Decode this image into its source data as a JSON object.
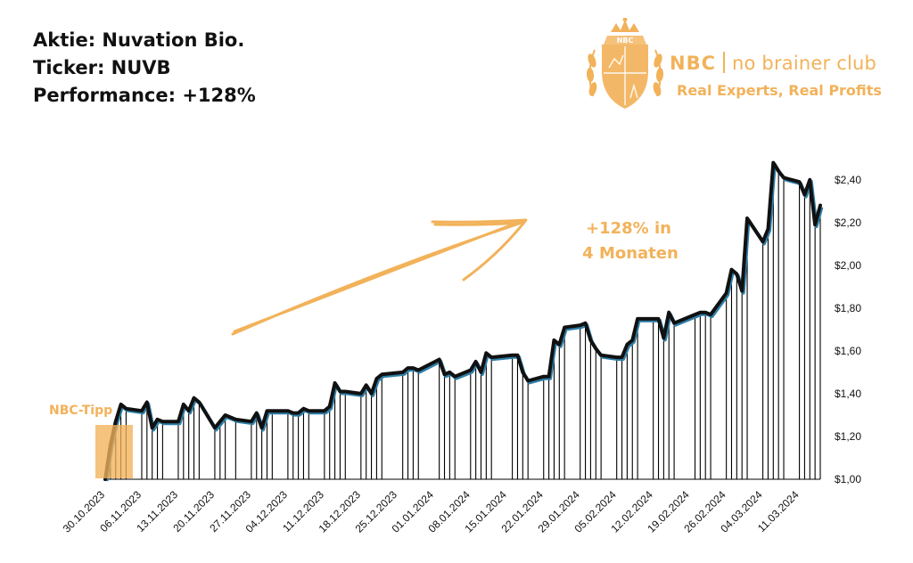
{
  "header": {
    "stock_line": "Aktie: Nuvation Bio.",
    "ticker_line": "Ticker: NUVB",
    "performance_line": "Performance: +128%"
  },
  "brand": {
    "crest_text": "NBC",
    "abbr": "NBC",
    "name": "no brainer club",
    "slogan": "Real Experts, Real Profits",
    "color": "#f2b25a"
  },
  "chart_data": {
    "type": "line",
    "title": "",
    "xlabel": "",
    "ylabel": "",
    "y_axis_position": "right",
    "ylim": [
      1.0,
      2.5
    ],
    "y_ticks": [
      "$1,00",
      "$1,20",
      "$1,40",
      "$1,60",
      "$1,80",
      "$2,00",
      "$2,20",
      "$2,40"
    ],
    "x_ticks": [
      "30.10.2023",
      "06.11.2023",
      "13.11.2023",
      "20.11.2023",
      "27.11.2023",
      "04.12.2023",
      "11.12.2023",
      "18.12.2023",
      "25.12.2023",
      "01.01.2024",
      "08.01.2024",
      "15.01.2024",
      "22.01.2024",
      "29.01.2024",
      "05.02.2024",
      "12.02.2024",
      "19.02.2024",
      "26.02.2024",
      "04.03.2024",
      "11.03.2024"
    ],
    "line_color": "#111111",
    "shadow_color": "#2f7fa8",
    "drop_lines": true,
    "series": [
      {
        "x": [
          "30.10.2023",
          "31.10.2023",
          "01.11.2023",
          "02.11.2023",
          "03.11.2023",
          "06.11.2023",
          "07.11.2023",
          "08.11.2023",
          "09.11.2023",
          "10.11.2023",
          "13.11.2023",
          "14.11.2023",
          "15.11.2023",
          "16.11.2023",
          "17.11.2023",
          "20.11.2023",
          "21.11.2023",
          "22.11.2023",
          "24.11.2023",
          "27.11.2023",
          "28.11.2023",
          "29.11.2023",
          "30.11.2023",
          "01.12.2023",
          "04.12.2023",
          "05.12.2023",
          "06.12.2023",
          "07.12.2023",
          "08.12.2023",
          "11.12.2023",
          "12.12.2023",
          "13.12.2023",
          "14.12.2023",
          "15.12.2023",
          "18.12.2023",
          "19.12.2023",
          "20.12.2023",
          "21.12.2023",
          "22.12.2023",
          "26.12.2023",
          "27.12.2023",
          "28.12.2023",
          "29.12.2023",
          "02.01.2024",
          "03.01.2024",
          "04.01.2024",
          "05.01.2024",
          "08.01.2024",
          "09.01.2024",
          "10.01.2024",
          "11.01.2024",
          "12.01.2024",
          "16.01.2024",
          "17.01.2024",
          "18.01.2024",
          "19.01.2024",
          "22.01.2024",
          "23.01.2024",
          "24.01.2024",
          "25.01.2024",
          "26.01.2024",
          "29.01.2024",
          "30.01.2024",
          "31.01.2024",
          "01.02.2024",
          "02.02.2024",
          "05.02.2024",
          "06.02.2024",
          "07.02.2024",
          "08.02.2024",
          "09.02.2024",
          "12.02.2024",
          "13.02.2024",
          "14.02.2024",
          "15.02.2024",
          "16.02.2024",
          "20.02.2024",
          "21.02.2024",
          "22.02.2024",
          "23.02.2024",
          "26.02.2024",
          "27.02.2024",
          "28.02.2024",
          "29.02.2024",
          "01.03.2024",
          "04.03.2024",
          "05.03.2024",
          "06.03.2024",
          "07.03.2024",
          "08.03.2024",
          "11.03.2024",
          "12.03.2024",
          "13.03.2024",
          "14.03.2024",
          "15.03.2024"
        ],
        "values": [
          1.0,
          1.16,
          1.27,
          1.35,
          1.33,
          1.32,
          1.36,
          1.24,
          1.28,
          1.27,
          1.27,
          1.35,
          1.32,
          1.38,
          1.36,
          1.24,
          1.27,
          1.3,
          1.28,
          1.27,
          1.31,
          1.24,
          1.32,
          1.32,
          1.32,
          1.31,
          1.31,
          1.33,
          1.32,
          1.32,
          1.34,
          1.45,
          1.41,
          1.41,
          1.4,
          1.44,
          1.4,
          1.47,
          1.49,
          1.5,
          1.52,
          1.52,
          1.51,
          1.56,
          1.49,
          1.5,
          1.48,
          1.51,
          1.55,
          1.5,
          1.59,
          1.57,
          1.58,
          1.58,
          1.5,
          1.46,
          1.48,
          1.48,
          1.65,
          1.63,
          1.71,
          1.72,
          1.73,
          1.65,
          1.61,
          1.58,
          1.57,
          1.57,
          1.63,
          1.65,
          1.75,
          1.75,
          1.75,
          1.66,
          1.78,
          1.73,
          1.77,
          1.78,
          1.78,
          1.77,
          1.87,
          1.98,
          1.96,
          1.88,
          2.22,
          2.11,
          2.17,
          2.48,
          2.44,
          2.41,
          2.39,
          2.33,
          2.4,
          2.19,
          2.28
        ]
      }
    ],
    "annotations": [
      {
        "text": "NBC-Tipp",
        "color": "#f2b25a"
      },
      {
        "text": "+128% in",
        "color": "#f2b25a"
      },
      {
        "text": "4 Monaten",
        "color": "#f2b25a"
      }
    ]
  }
}
